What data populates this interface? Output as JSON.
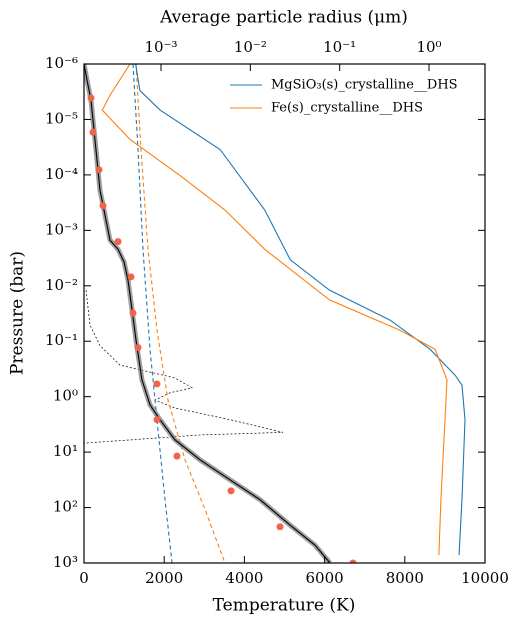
{
  "chart_data": {
    "type": "line",
    "xlabel": "Temperature (K)",
    "ylabel": "Pressure (bar)",
    "x2label": "Average particle radius (μm)",
    "xlim": [
      0,
      10000
    ],
    "xticks": [
      0,
      2000,
      4000,
      6000,
      8000,
      10000
    ],
    "ylim": [
      1e-06,
      1000
    ],
    "ylog": true,
    "yinvert": true,
    "yticks": [
      {
        "value": 1e-06,
        "label": "10⁻⁶"
      },
      {
        "value": 1e-05,
        "label": "10⁻⁵"
      },
      {
        "value": 0.0001,
        "label": "10⁻⁴"
      },
      {
        "value": 0.001,
        "label": "10⁻³"
      },
      {
        "value": 0.01,
        "label": "10⁻²"
      },
      {
        "value": 0.1,
        "label": "10⁻¹"
      },
      {
        "value": 1,
        "label": "10⁰"
      },
      {
        "value": 10,
        "label": "10¹"
      },
      {
        "value": 100,
        "label": "10²"
      },
      {
        "value": 1000,
        "label": "10³"
      }
    ],
    "x2lim": [
      0.0001374,
      4.236
    ],
    "x2log": true,
    "x2ticks": [
      {
        "value": 0.001,
        "label": "10⁻³"
      },
      {
        "value": 0.01,
        "label": "10⁻²"
      },
      {
        "value": 0.1,
        "label": "10⁻¹"
      },
      {
        "value": 1,
        "label": "10⁰"
      }
    ],
    "legend": "upper right",
    "series": [
      {
        "color": "#000000",
        "style": "dotted",
        "x": [
          50,
          150,
          399,
          898,
          1646,
          2269,
          2693,
          2145,
          1771,
          2269,
          3641,
          4963,
          2893,
          0
        ],
        "values": [
          0.012,
          0.051,
          0.12,
          0.27,
          0.36,
          0.46,
          0.69,
          0.85,
          1.15,
          1.6,
          2.6,
          4.4,
          4.9,
          6.9
        ]
      },
      {
        "color": "#1f77b4",
        "style": "dashed",
        "x": [
          1222,
          1347,
          1471,
          1646,
          1845,
          2020,
          2195
        ],
        "values": [
          1e-06,
          3.5e-05,
          0.0022,
          0.14,
          4.0,
          72,
          1000
        ]
      },
      {
        "color": "#ff7f0e",
        "style": "dashed",
        "x": [
          1297,
          1421,
          1596,
          1820,
          2095,
          2519,
          3017,
          3516
        ],
        "values": [
          1e-06,
          3.5e-05,
          0.0022,
          0.063,
          1.15,
          13.8,
          108,
          1000
        ]
      },
      {
        "color": "#000000",
        "style": "band",
        "x": [
          0,
          75,
          175,
          249,
          324,
          399,
          499,
          648,
          848,
          998,
          1097,
          1197,
          1297,
          1446,
          1646,
          1895,
          2269,
          2893,
          3641,
          4389,
          5137,
          5761,
          6135
        ],
        "values": [
          1e-06,
          1.95e-06,
          4.5e-06,
          1.55e-05,
          5.4e-05,
          0.00019,
          0.00043,
          0.0015,
          0.0022,
          0.0037,
          0.0079,
          0.027,
          0.096,
          0.5,
          1.4,
          2.6,
          6.0,
          13.8,
          31.6,
          72,
          207,
          477,
          1000
        ]
      },
      {
        "color": "#f0644b",
        "style": "dots",
        "x": [
          175,
          224,
          374,
          474,
          848,
          1172,
          1222,
          1347,
          1820,
          1820,
          2319,
          3666,
          4888,
          6708
        ],
        "values": [
          4.1e-06,
          1.7e-05,
          8.1e-05,
          0.00036,
          0.0016,
          0.0069,
          0.031,
          0.13,
          0.59,
          2.6,
          11.8,
          50,
          222,
          1000
        ]
      },
      {
        "name": "MgSiO₃(s)_crystalline__DHS",
        "color": "#1f77b4",
        "style": "solid",
        "axis": "x2",
        "x": [
          0.00052,
          0.00058,
          0.00098,
          0.0046,
          0.0145,
          0.028,
          0.077,
          0.37,
          1.03,
          1.96,
          2.34,
          2.53,
          2.34,
          2.17
        ],
        "values": [
          1e-06,
          3e-06,
          6.8e-06,
          3.5e-05,
          0.00043,
          0.0034,
          0.012,
          0.042,
          0.14,
          0.41,
          0.62,
          2.6,
          72,
          720
        ]
      },
      {
        "name": "Fe(s)_crystalline__DHS",
        "color": "#ff7f0e",
        "style": "solid",
        "axis": "x2",
        "x": [
          0.00045,
          0.00027,
          0.00022,
          0.00045,
          0.0016,
          0.0052,
          0.0145,
          0.077,
          0.47,
          1.17,
          1.59,
          1.51,
          1.36,
          1.29
        ],
        "values": [
          1e-06,
          3.6e-06,
          6.8e-06,
          2.3e-05,
          0.0001,
          0.00043,
          0.0022,
          0.018,
          0.063,
          0.14,
          0.5,
          2.6,
          72,
          720
        ]
      }
    ]
  }
}
